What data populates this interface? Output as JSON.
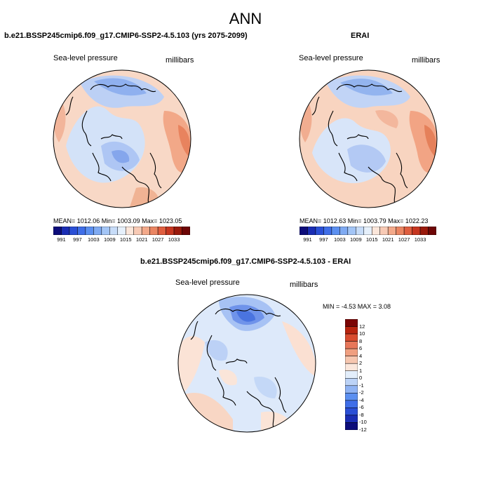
{
  "title": "ANN",
  "panels": [
    {
      "title": "b.e21.BSSP245cmip6.f09_g17.CMIP6-SSP2-4.5.103 (yrs 2075-2099)",
      "variable": "Sea-level pressure",
      "units": "millibars",
      "stats": "MEAN= 1012.06  Min= 1003.09  Max= 1023.05"
    },
    {
      "title": "ERAI",
      "variable": "Sea-level pressure",
      "units": "millibars",
      "stats": "MEAN= 1012.63  Min= 1003.79  Max= 1022.23"
    },
    {
      "title": "b.e21.BSSP245cmip6.f09_g17.CMIP6-SSP2-4.5.103 - ERAI",
      "variable": "Sea-level pressure",
      "units": "millibars",
      "stats": "MIN = -4.53 MAX =   3.08"
    }
  ],
  "colorbar_abs": {
    "colors": [
      "#0c0c7a",
      "#1a2db4",
      "#2a4fd6",
      "#3f6ee8",
      "#5b8ff0",
      "#7faaf2",
      "#a3c5f6",
      "#c7dcf8",
      "#e6f0fb",
      "#fbe6da",
      "#f8cab5",
      "#f3a98a",
      "#ea8562",
      "#df5e3f",
      "#c63620",
      "#9a1a0c",
      "#6e0606"
    ],
    "labels": [
      "991",
      "997",
      "1003",
      "1009",
      "1015",
      "1021",
      "1027",
      "1033"
    ]
  },
  "colorbar_diff": {
    "colors": [
      "#0c0c7a",
      "#1a2db4",
      "#2a4fd6",
      "#3f6ee8",
      "#5b8ff0",
      "#8fb3f3",
      "#bcd3f7",
      "#e3eefb",
      "#fbe7dc",
      "#f6c6af",
      "#f09f80",
      "#e7775a",
      "#d94c2f",
      "#b8240f",
      "#7a0505"
    ],
    "labels": [
      "12",
      "10",
      "8",
      "6",
      "4",
      "2",
      "1",
      "0",
      "-1",
      "-2",
      "-4",
      "-6",
      "-8",
      "-10",
      "-12"
    ]
  }
}
